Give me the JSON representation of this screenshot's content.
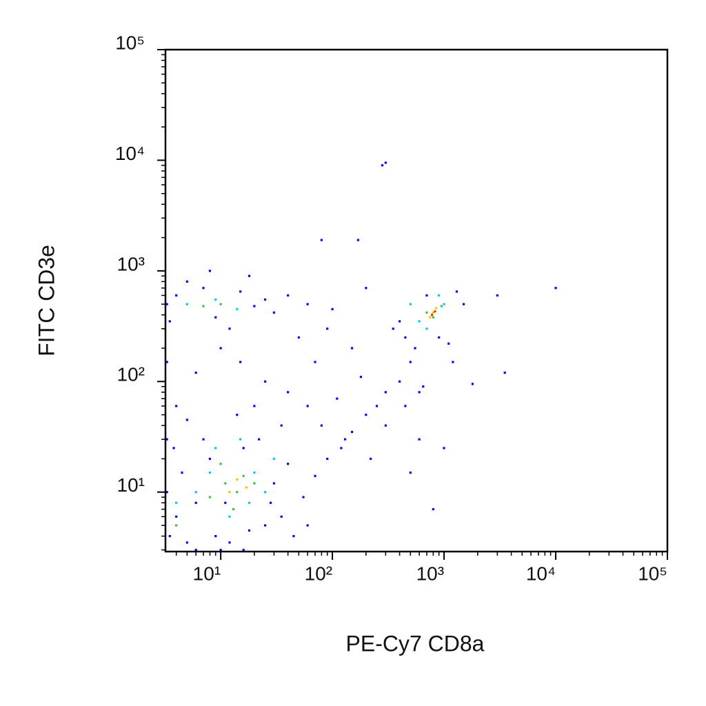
{
  "chart_data": {
    "type": "scatter",
    "x_label": "PE-Cy7 CD8a",
    "y_label": "FITC CD3e",
    "xlog": true,
    "ylog": true,
    "xlim": [
      3.2,
      100000
    ],
    "ylim": [
      2.9,
      100000
    ],
    "xticks": [
      {
        "value": 10,
        "label": "10¹"
      },
      {
        "value": 100,
        "label": "10²"
      },
      {
        "value": 1000,
        "label": "10³"
      },
      {
        "value": 10000,
        "label": "10⁴"
      },
      {
        "value": 100000,
        "label": "10⁵"
      }
    ],
    "yticks": [
      {
        "value": 10,
        "label": "10¹"
      },
      {
        "value": 100,
        "label": "10²"
      },
      {
        "value": 1000,
        "label": "10³"
      },
      {
        "value": 10000,
        "label": "10⁴"
      },
      {
        "value": 100000,
        "label": "10⁵"
      }
    ],
    "xminorticks": [
      4,
      5,
      6,
      7,
      8,
      9,
      20,
      30,
      40,
      50,
      60,
      70,
      80,
      90,
      200,
      300,
      400,
      500,
      600,
      700,
      800,
      900,
      2000,
      3000,
      4000,
      5000,
      6000,
      7000,
      8000,
      9000,
      20000,
      30000,
      40000,
      50000,
      60000,
      70000,
      80000,
      90000
    ],
    "yminorticks": [
      3,
      4,
      5,
      6,
      7,
      8,
      9,
      20,
      30,
      40,
      50,
      60,
      70,
      80,
      90,
      200,
      300,
      400,
      500,
      600,
      700,
      800,
      900,
      2000,
      3000,
      4000,
      5000,
      6000,
      7000,
      8000,
      9000,
      20000,
      30000,
      40000,
      50000,
      60000,
      70000,
      80000,
      90000
    ],
    "series": [
      {
        "color": "#0000ff",
        "x": [
          3.5,
          4,
          5,
          6,
          4.5,
          3.8,
          7,
          9,
          12,
          18,
          25,
          35,
          45,
          60,
          30,
          40,
          55,
          70,
          90,
          120,
          150,
          200,
          250,
          300,
          400,
          500,
          80,
          60,
          40,
          25,
          15,
          10,
          6,
          4,
          20,
          35,
          110,
          180,
          130,
          220,
          300,
          450,
          600,
          650,
          3.5,
          4,
          5,
          7,
          9,
          12,
          15,
          20,
          25,
          30,
          18,
          8,
          40,
          60,
          100,
          170,
          80,
          300,
          280,
          3000,
          10000,
          3500,
          1800,
          1200,
          1000,
          800,
          500,
          600,
          450,
          350,
          700,
          1300,
          1500,
          1100,
          550,
          900,
          400,
          200,
          50,
          70,
          90,
          150,
          3.3,
          3.3,
          3.3,
          3.3,
          5,
          8,
          11,
          16,
          22,
          28,
          14,
          6,
          10,
          16
        ],
        "values": [
          4,
          6,
          3.5,
          8,
          15,
          25,
          30,
          4,
          3.5,
          4.5,
          5,
          6,
          4,
          5,
          12,
          18,
          9,
          14,
          20,
          25,
          35,
          50,
          60,
          80,
          100,
          150,
          40,
          60,
          80,
          100,
          150,
          200,
          120,
          60,
          60,
          40,
          70,
          110,
          30,
          20,
          40,
          60,
          30,
          90,
          350,
          600,
          800,
          700,
          380,
          300,
          650,
          480,
          550,
          420,
          900,
          1000,
          600,
          500,
          450,
          1900,
          1900,
          9500,
          9000,
          600,
          700,
          120,
          95,
          150,
          25,
          7,
          15,
          80,
          250,
          300,
          600,
          650,
          500,
          220,
          200,
          250,
          350,
          700,
          250,
          150,
          300,
          200,
          10,
          30,
          150,
          500,
          45,
          20,
          8,
          25,
          30,
          8,
          50,
          3,
          3,
          3
        ]
      },
      {
        "color": "#00c8ff",
        "x": [
          6,
          8,
          12,
          20,
          25,
          9,
          15,
          5,
          9,
          14,
          700,
          1000,
          600,
          900,
          4,
          18,
          30,
          500
        ],
        "values": [
          10,
          15,
          6,
          15,
          10,
          25,
          30,
          500,
          550,
          450,
          300,
          500,
          350,
          600,
          8,
          8,
          20,
          500
        ]
      },
      {
        "color": "#3cc040",
        "x": [
          8,
          11,
          14,
          10,
          16,
          20,
          13,
          7,
          10,
          800,
          950,
          700,
          4
        ],
        "values": [
          9,
          12,
          10,
          18,
          14,
          12,
          7,
          480,
          500,
          380,
          480,
          420,
          5
        ]
      },
      {
        "color": "#ffc000",
        "x": [
          12,
          14,
          17,
          800,
          850,
          750
        ],
        "values": [
          10,
          13,
          11,
          420,
          460,
          380
        ]
      },
      {
        "color": "#ff3000",
        "x": [
          830,
          780
        ],
        "values": [
          430,
          400
        ]
      }
    ]
  }
}
